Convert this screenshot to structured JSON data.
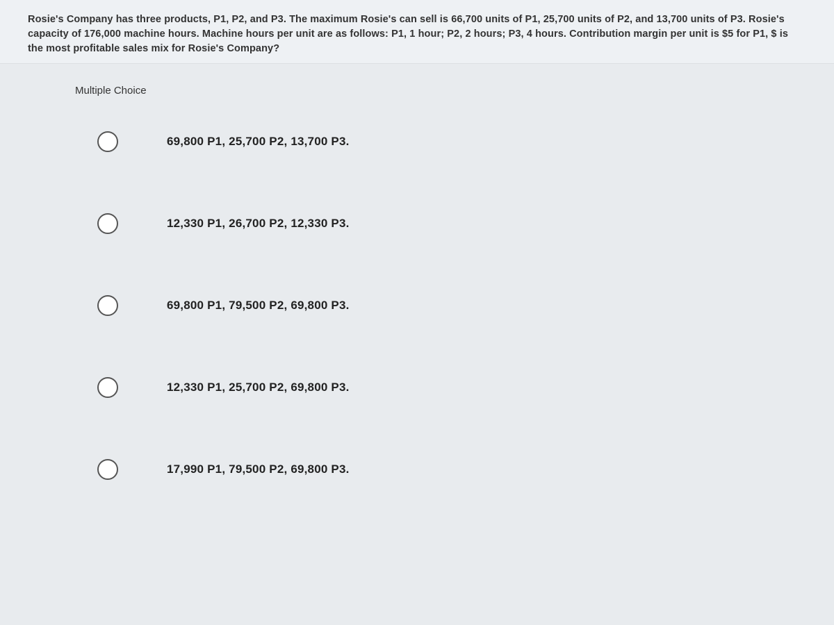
{
  "question": {
    "text": "Rosie's Company has three products, P1, P2, and P3. The maximum Rosie's can sell is 66,700 units of P1, 25,700 units of P2, and 13,700 units of P3. Rosie's capacity of 176,000 machine hours. Machine hours per unit are as follows: P1, 1 hour; P2, 2 hours; P3, 4 hours. Contribution margin per unit is $5 for P1, $ is the most profitable sales mix for Rosie's Company?"
  },
  "section_label": "Multiple Choice",
  "options": [
    {
      "label": "69,800 P1, 25,700 P2, 13,700 P3."
    },
    {
      "label": "12,330 P1, 26,700 P2, 12,330 P3."
    },
    {
      "label": "69,800 P1, 79,500 P2, 69,800 P3."
    },
    {
      "label": "12,330 P1, 25,700 P2, 69,800 P3."
    },
    {
      "label": "17,990 P1, 79,500 P2, 69,800 P3."
    }
  ],
  "colors": {
    "page_bg": "#e8ebee",
    "question_bg": "#eef1f4",
    "text": "#2a2a2a",
    "radio_border": "#555"
  }
}
